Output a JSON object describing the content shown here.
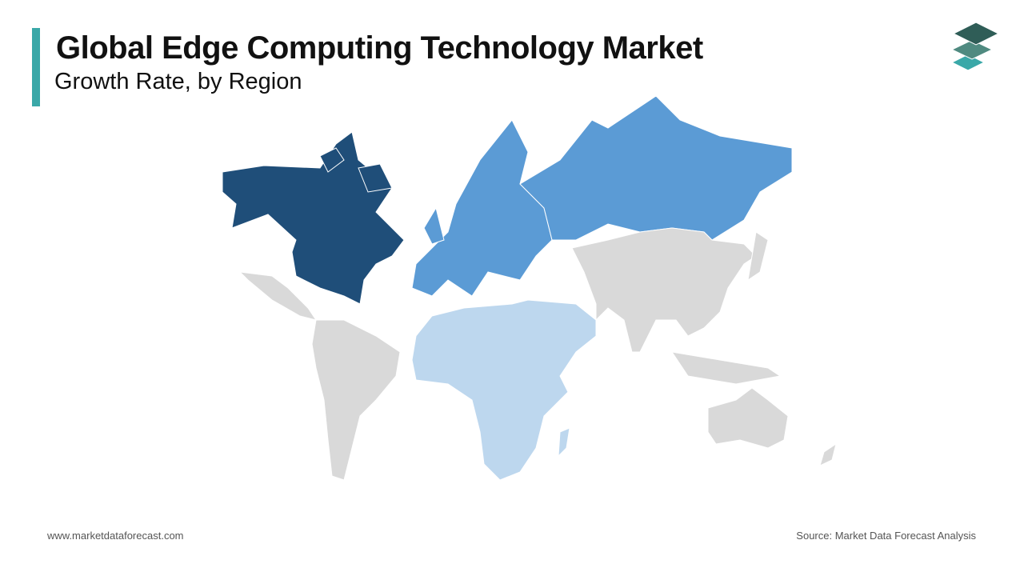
{
  "header": {
    "title": "Global Edge Computing Technology Market",
    "subtitle": "Growth Rate, by Region"
  },
  "footer": {
    "website": "www.marketdataforecast.com",
    "source": "Source: Market Data Forecast Analysis"
  }
}
